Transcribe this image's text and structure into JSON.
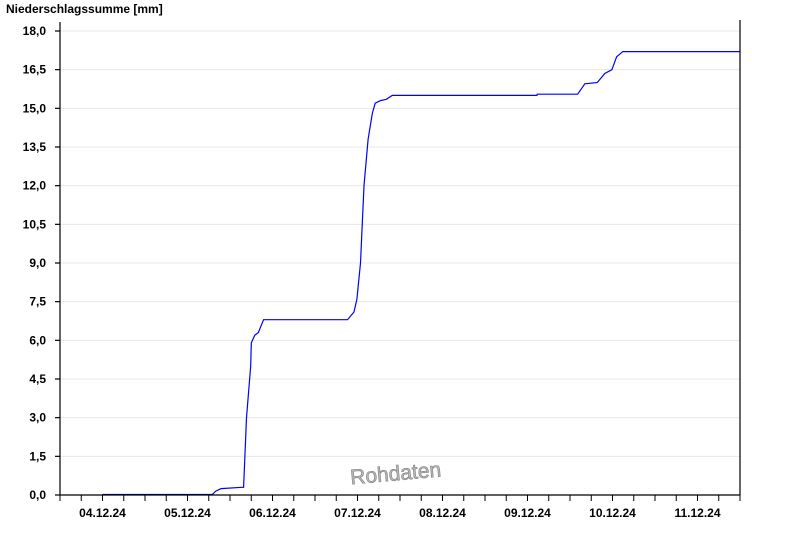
{
  "chart_data": {
    "type": "line",
    "title": "",
    "ylabel": "Niederschlagssumme [mm]",
    "xlabel": "",
    "xlim": [
      "2024-12-03T12:00",
      "2024-12-11T12:00"
    ],
    "ylim": [
      0,
      18
    ],
    "yticks": [
      "0,0",
      "1,5",
      "3,0",
      "4,5",
      "6,0",
      "7,5",
      "9,0",
      "10,5",
      "12,0",
      "13,5",
      "15,0",
      "16,5",
      "18,0"
    ],
    "xticks": [
      {
        "date": "2024-12-04T00:00",
        "label": "04.12.24"
      },
      {
        "date": "2024-12-05T00:00",
        "label": "05.12.24"
      },
      {
        "date": "2024-12-06T00:00",
        "label": "06.12.24"
      },
      {
        "date": "2024-12-07T00:00",
        "label": "07.12.24"
      },
      {
        "date": "2024-12-08T00:00",
        "label": "08.12.24"
      },
      {
        "date": "2024-12-09T00:00",
        "label": "09.12.24"
      },
      {
        "date": "2024-12-10T00:00",
        "label": "10.12.24"
      },
      {
        "date": "2024-12-11T00:00",
        "label": "11.12.24"
      }
    ],
    "grid": true,
    "line_color": "#0000ff",
    "watermark": "Rohdaten",
    "series": [
      {
        "x": [
          "2024-12-04T00:00",
          "2024-12-05T07:00",
          "2024-12-05T08:00",
          "2024-12-05T09:30",
          "2024-12-05T15:20",
          "2024-12-05T15:50",
          "2024-12-05T16:40",
          "2024-12-05T17:50",
          "2024-12-05T18:00",
          "2024-12-05T19:00",
          "2024-12-05T20:00",
          "2024-12-05T21:30",
          "2024-12-06T21:10",
          "2024-12-06T23:00",
          "2024-12-06T23:50",
          "2024-12-07T00:50",
          "2024-12-07T01:50",
          "2024-12-07T03:00",
          "2024-12-07T04:10",
          "2024-12-07T05:00",
          "2024-12-07T06:30",
          "2024-12-07T08:10",
          "2024-12-07T09:50",
          "2024-12-09T02:40",
          "2024-12-09T02:45",
          "2024-12-09T14:10",
          "2024-12-09T16:10",
          "2024-12-09T19:40",
          "2024-12-09T21:50",
          "2024-12-09T23:50",
          "2024-12-10T01:10",
          "2024-12-10T02:55",
          "2024-12-11T12:00"
        ],
        "y": [
          0.02,
          0.02,
          0.15,
          0.25,
          0.3,
          0.3,
          3.0,
          5.0,
          5.9,
          6.2,
          6.3,
          6.8,
          6.8,
          7.1,
          7.6,
          9.0,
          12.0,
          13.8,
          14.8,
          15.2,
          15.3,
          15.35,
          15.5,
          15.5,
          15.55,
          15.55,
          15.95,
          16.0,
          16.35,
          16.5,
          17.0,
          17.2,
          17.2
        ]
      }
    ]
  }
}
